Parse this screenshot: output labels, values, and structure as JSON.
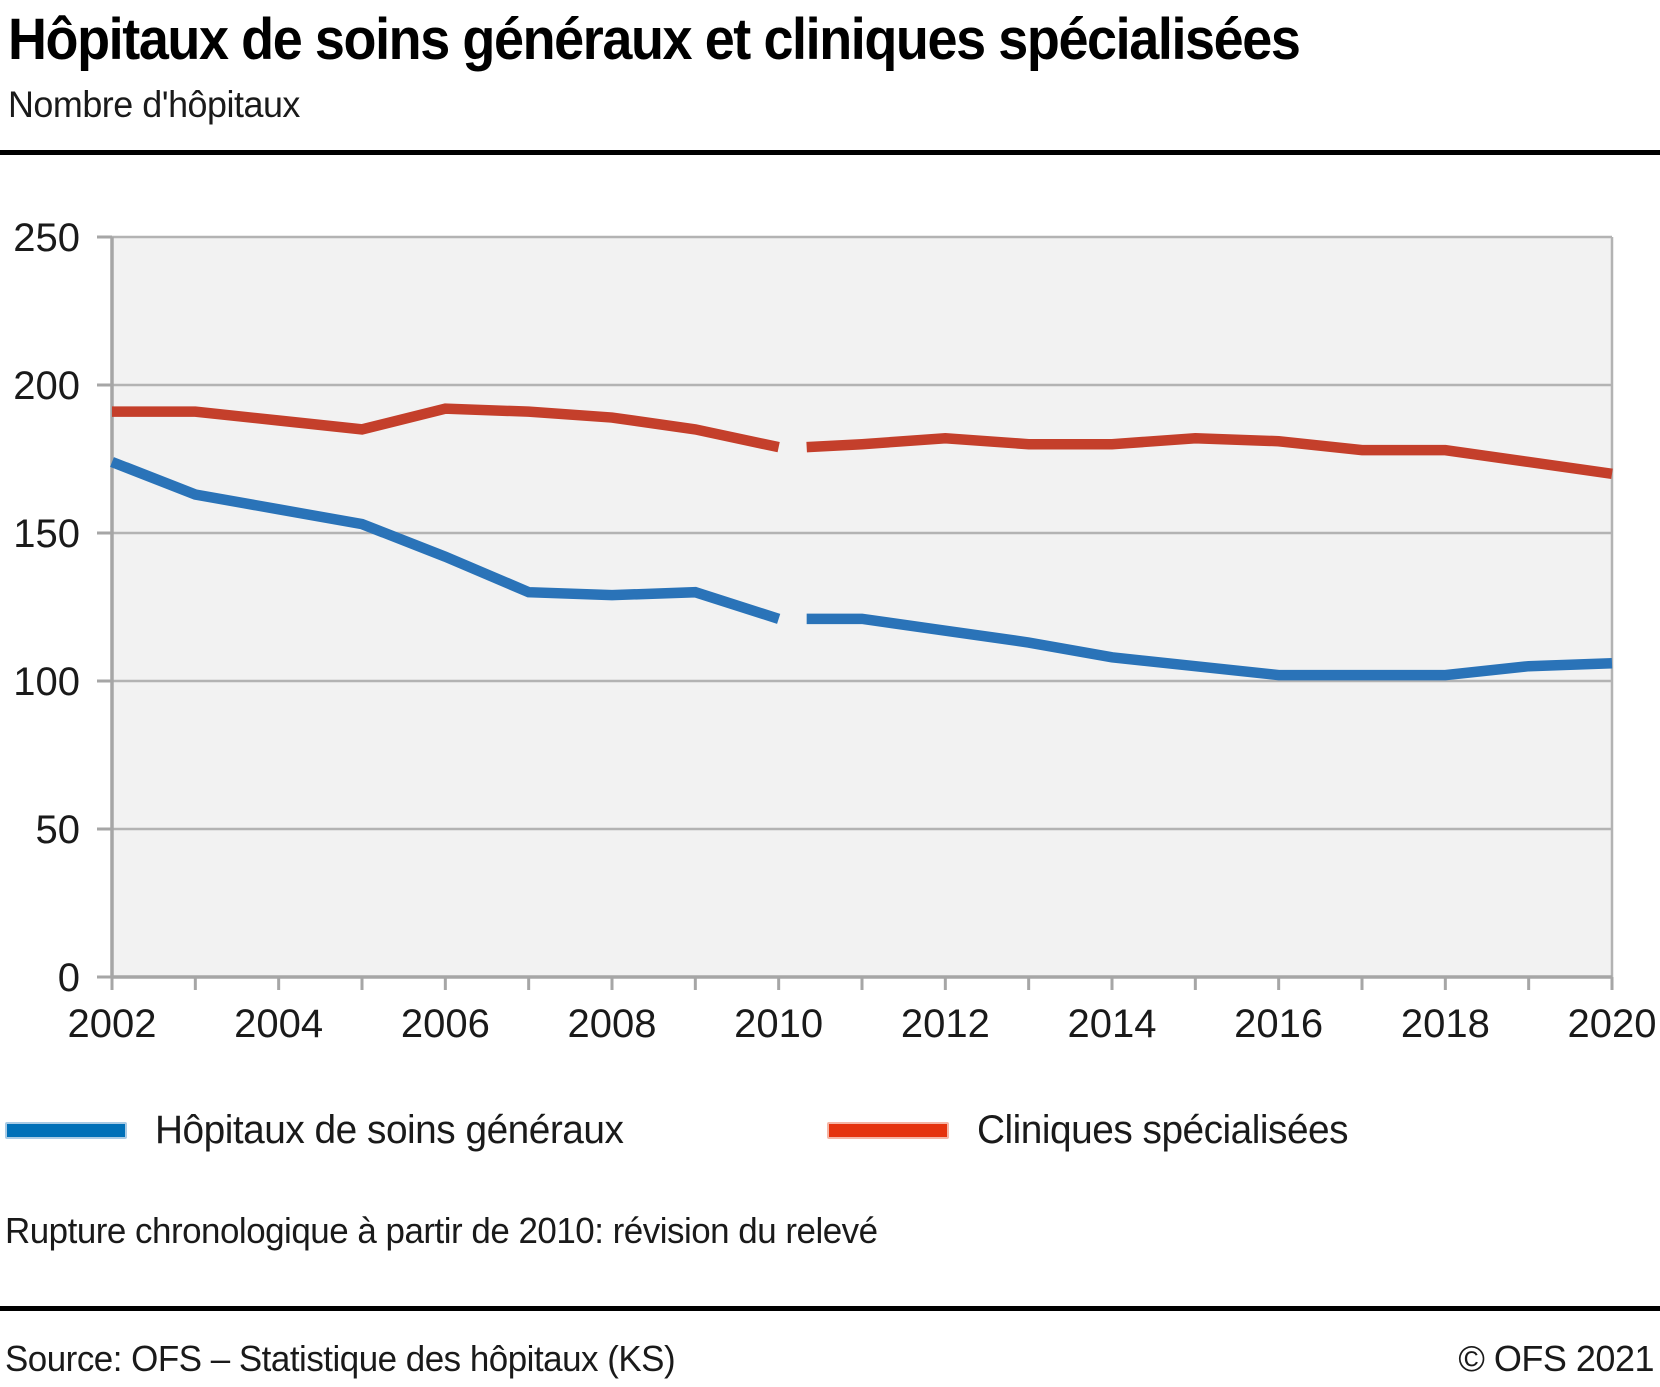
{
  "header": {
    "title": "Hôpitaux de soins généraux et cliniques spécialisées",
    "subtitle": "Nombre d'hôpitaux"
  },
  "chart_data": {
    "type": "line",
    "x": [
      2002,
      2003,
      2004,
      2005,
      2006,
      2007,
      2008,
      2009,
      2010,
      2011,
      2012,
      2013,
      2014,
      2015,
      2016,
      2017,
      2018,
      2019,
      2020
    ],
    "series": [
      {
        "name": "Hôpitaux de soins généraux",
        "color": "#2a73b8",
        "legend_color": "#0070b8",
        "legend_border": "#a9cbe5",
        "values": [
          174,
          163,
          158,
          153,
          142,
          130,
          129,
          130,
          121,
          121,
          117,
          113,
          108,
          105,
          102,
          102,
          102,
          105,
          106
        ]
      },
      {
        "name": "Cliniques spécialisées",
        "color": "#c43f2b",
        "legend_color": "#e5330e",
        "legend_border": "#f5b5a5",
        "values": [
          191,
          191,
          188,
          185,
          192,
          191,
          189,
          185,
          179,
          180,
          182,
          180,
          180,
          182,
          181,
          178,
          178,
          174,
          170
        ]
      }
    ],
    "break_after_year": 2010,
    "ylim": [
      0,
      250
    ],
    "yticks": [
      0,
      50,
      100,
      150,
      200,
      250
    ],
    "xticks_labeled": [
      2002,
      2004,
      2006,
      2008,
      2010,
      2012,
      2014,
      2016,
      2018,
      2020
    ],
    "grid": "horizontal",
    "legend_position": "bottom",
    "plot_bg": "#f2f2f2",
    "grid_color": "#b3b3b3",
    "axis_color": "#a6a6a6",
    "tick_label_color": "#1a1a1a"
  },
  "note": "Rupture chronologique à partir de 2010: révision du relevé",
  "footer": {
    "source": "Source: OFS – Statistique des hôpitaux (KS)",
    "copyright": "© OFS 2021"
  }
}
